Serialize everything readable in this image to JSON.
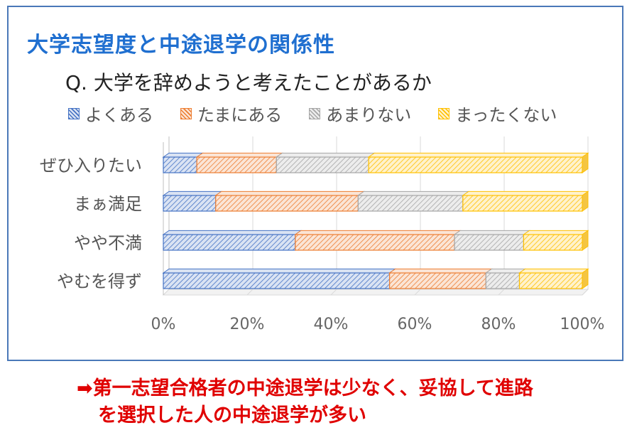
{
  "heading": "大学志望度と中途退学の関係性",
  "chart_data": {
    "type": "bar",
    "orientation": "horizontal",
    "stacked": "percent",
    "title": "Q. 大学を辞めようと考えたことがあるか",
    "categories": [
      "ぜひ入りたい",
      "まぁ満足",
      "やや不満",
      "やむを得ず"
    ],
    "series": [
      {
        "name": "よくある",
        "values": [
          8,
          12.5,
          31.5,
          54
        ]
      },
      {
        "name": "たまにある",
        "values": [
          19,
          34,
          38,
          23
        ]
      },
      {
        "name": "あまりない",
        "values": [
          22,
          25,
          16.5,
          8
        ]
      },
      {
        "name": "まったくない",
        "values": [
          51,
          28.5,
          14,
          15
        ]
      }
    ],
    "xlim": [
      0,
      100
    ],
    "x_ticks": [
      "0%",
      "20%",
      "40%",
      "60%",
      "80%",
      "100%"
    ],
    "legend_position": "top",
    "colors": [
      "#4472c4",
      "#ed7d31",
      "#a5a5a5",
      "#ffc000"
    ],
    "fill_colors": [
      "#dae3f3",
      "#fbe5d6",
      "#ededed",
      "#fff2cc"
    ]
  },
  "conclusion": {
    "arrow": "➡",
    "line1": "第一志望合格者の中途退学は少なく、妥協して進路",
    "line2": "を選択した人の中途退学が多い"
  }
}
